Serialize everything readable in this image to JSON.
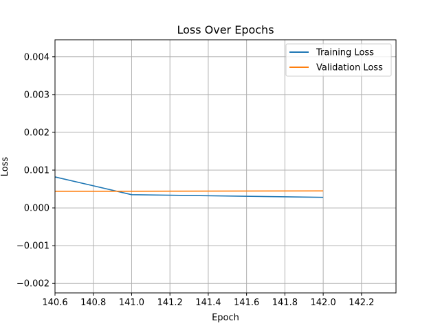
{
  "chart_data": {
    "type": "line",
    "title": "Loss Over Epochs",
    "xlabel": "Epoch",
    "ylabel": "Loss",
    "xlim": [
      140.6,
      142.38
    ],
    "ylim": [
      -0.00225,
      0.00445
    ],
    "xticks": [
      140.6,
      140.8,
      141.0,
      141.2,
      141.4,
      141.6,
      141.8,
      142.0,
      142.2
    ],
    "xtick_labels": [
      "140.6",
      "140.8",
      "141.0",
      "141.2",
      "141.4",
      "141.6",
      "141.8",
      "142.0",
      "142.2"
    ],
    "yticks": [
      -0.002,
      -0.001,
      0.0,
      0.001,
      0.002,
      0.003,
      0.004
    ],
    "ytick_labels": [
      "−0.002",
      "−0.001",
      "0.000",
      "0.001",
      "0.002",
      "0.003",
      "0.004"
    ],
    "grid": true,
    "legend_position": "top-right",
    "series": [
      {
        "name": "Training Loss",
        "color": "#1f77b4",
        "x": [
          140.6,
          141.0,
          142.0
        ],
        "y": [
          0.00082,
          0.00035,
          0.00028
        ]
      },
      {
        "name": "Validation Loss",
        "color": "#ff7f0e",
        "x": [
          140.6,
          141.0,
          142.0
        ],
        "y": [
          0.00044,
          0.00044,
          0.00045
        ]
      }
    ]
  }
}
